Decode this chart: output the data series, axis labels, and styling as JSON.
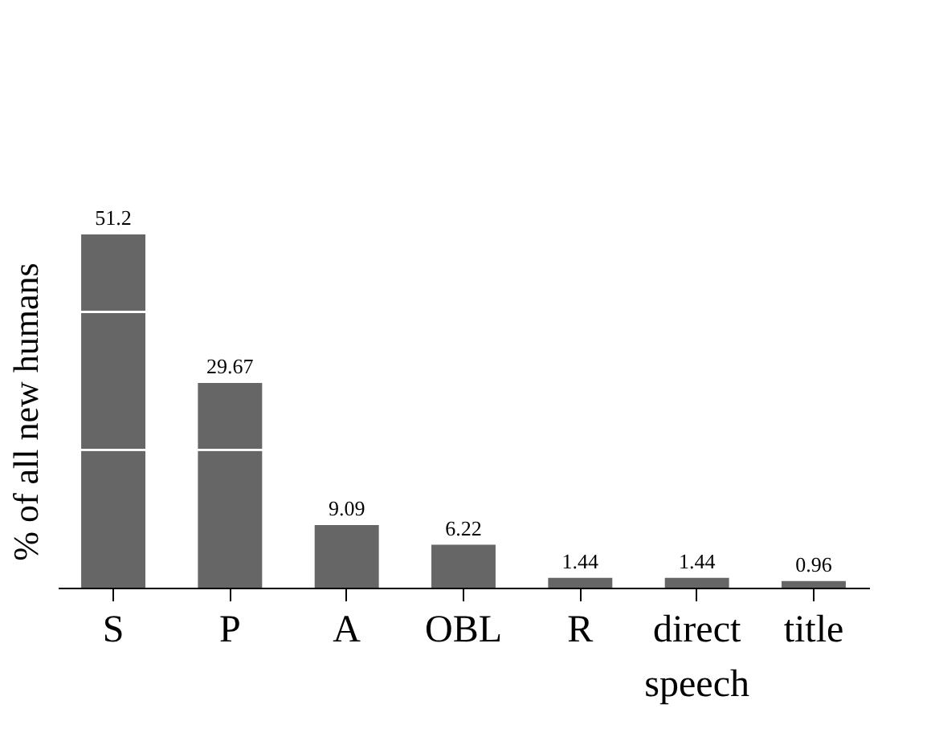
{
  "chart_data": {
    "type": "bar",
    "ylabel": "% of all new humans",
    "categories": [
      "S",
      "P",
      "A",
      "OBL",
      "R",
      "direct speech",
      "title"
    ],
    "values": [
      51.2,
      29.67,
      9.09,
      6.22,
      1.44,
      1.44,
      0.96
    ],
    "color": "#666666",
    "data_labels": true,
    "ref_lines": [
      {
        "axis": "y",
        "value": 20,
        "color": "#ffffff"
      },
      {
        "axis": "y",
        "value": 40,
        "color": "#ffffff"
      }
    ]
  }
}
